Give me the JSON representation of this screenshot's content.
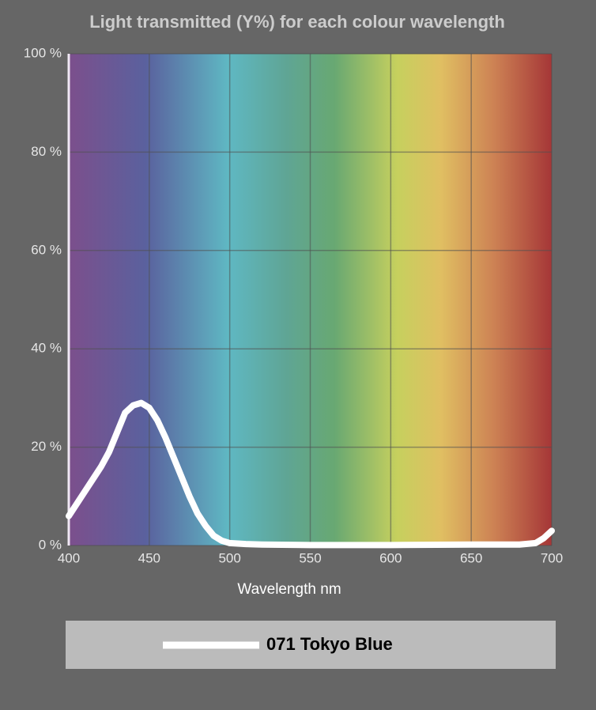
{
  "chart_data": {
    "type": "line",
    "title": "Light transmitted (Y%) for each colour wavelength",
    "x_label": "Wavelength nm",
    "x": [
      400,
      410,
      420,
      425,
      430,
      435,
      440,
      445,
      450,
      455,
      460,
      465,
      470,
      475,
      480,
      485,
      490,
      495,
      500,
      510,
      520,
      550,
      600,
      650,
      680,
      690,
      695,
      700
    ],
    "series": [
      {
        "name": "071 Tokyo Blue",
        "color": "#ffffff",
        "values": [
          6,
          11,
          16,
          19,
          23,
          27,
          28.5,
          29,
          28,
          25.5,
          22,
          18,
          14,
          10,
          6.5,
          4,
          2,
          1,
          0.5,
          0.3,
          0.2,
          0.1,
          0.1,
          0.2,
          0.2,
          0.5,
          1.5,
          3
        ]
      }
    ],
    "xlim": [
      400,
      700
    ],
    "xticks": [
      400,
      450,
      500,
      550,
      600,
      650,
      700
    ],
    "ylim": [
      0,
      100
    ],
    "yticks": [
      {
        "value": 0,
        "label": "0 %"
      },
      {
        "value": 20,
        "label": "20 %"
      },
      {
        "value": 40,
        "label": "40 %"
      },
      {
        "value": 60,
        "label": "60 %"
      },
      {
        "value": 80,
        "label": "80 %"
      },
      {
        "value": 100,
        "label": "100 %"
      }
    ],
    "grid": true
  }
}
